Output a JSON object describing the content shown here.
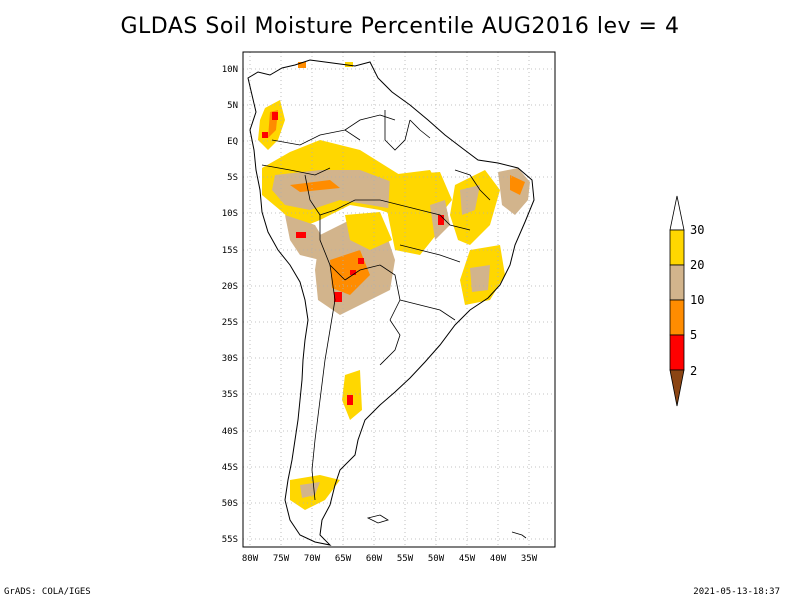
{
  "title": "GLDAS Soil Moisture Percentile AUG2016 lev = 4",
  "footer": {
    "left": "GrADS: COLA/IGES",
    "right": "2021-05-13-18:37"
  },
  "map": {
    "lat_range": [
      -56,
      12
    ],
    "lon_range": [
      -81,
      -31
    ],
    "lat_ticks": [
      "10N",
      "5N",
      "EQ",
      "5S",
      "10S",
      "15S",
      "20S",
      "25S",
      "30S",
      "35S",
      "40S",
      "45S",
      "50S",
      "55S"
    ],
    "lat_tick_values": [
      10,
      5,
      0,
      -5,
      -10,
      -15,
      -20,
      -25,
      -30,
      -35,
      -40,
      -45,
      -50,
      -55
    ],
    "lon_ticks": [
      "80W",
      "75W",
      "70W",
      "65W",
      "60W",
      "55W",
      "50W",
      "45W",
      "40W",
      "35W"
    ],
    "lon_tick_values": [
      -80,
      -75,
      -70,
      -65,
      -60,
      -55,
      -50,
      -45,
      -40,
      -35
    ],
    "grid": "dotted"
  },
  "legend": {
    "labels": [
      "2",
      "5",
      "10",
      "20",
      "30"
    ],
    "colors": [
      "#8b4513",
      "#ff0000",
      "#ff8c00",
      "#d2b48c",
      "#ffd700",
      "#ffffff"
    ],
    "placement": "right"
  },
  "colors": {
    "coast": "#000000",
    "grid": "#b0b0b0"
  }
}
